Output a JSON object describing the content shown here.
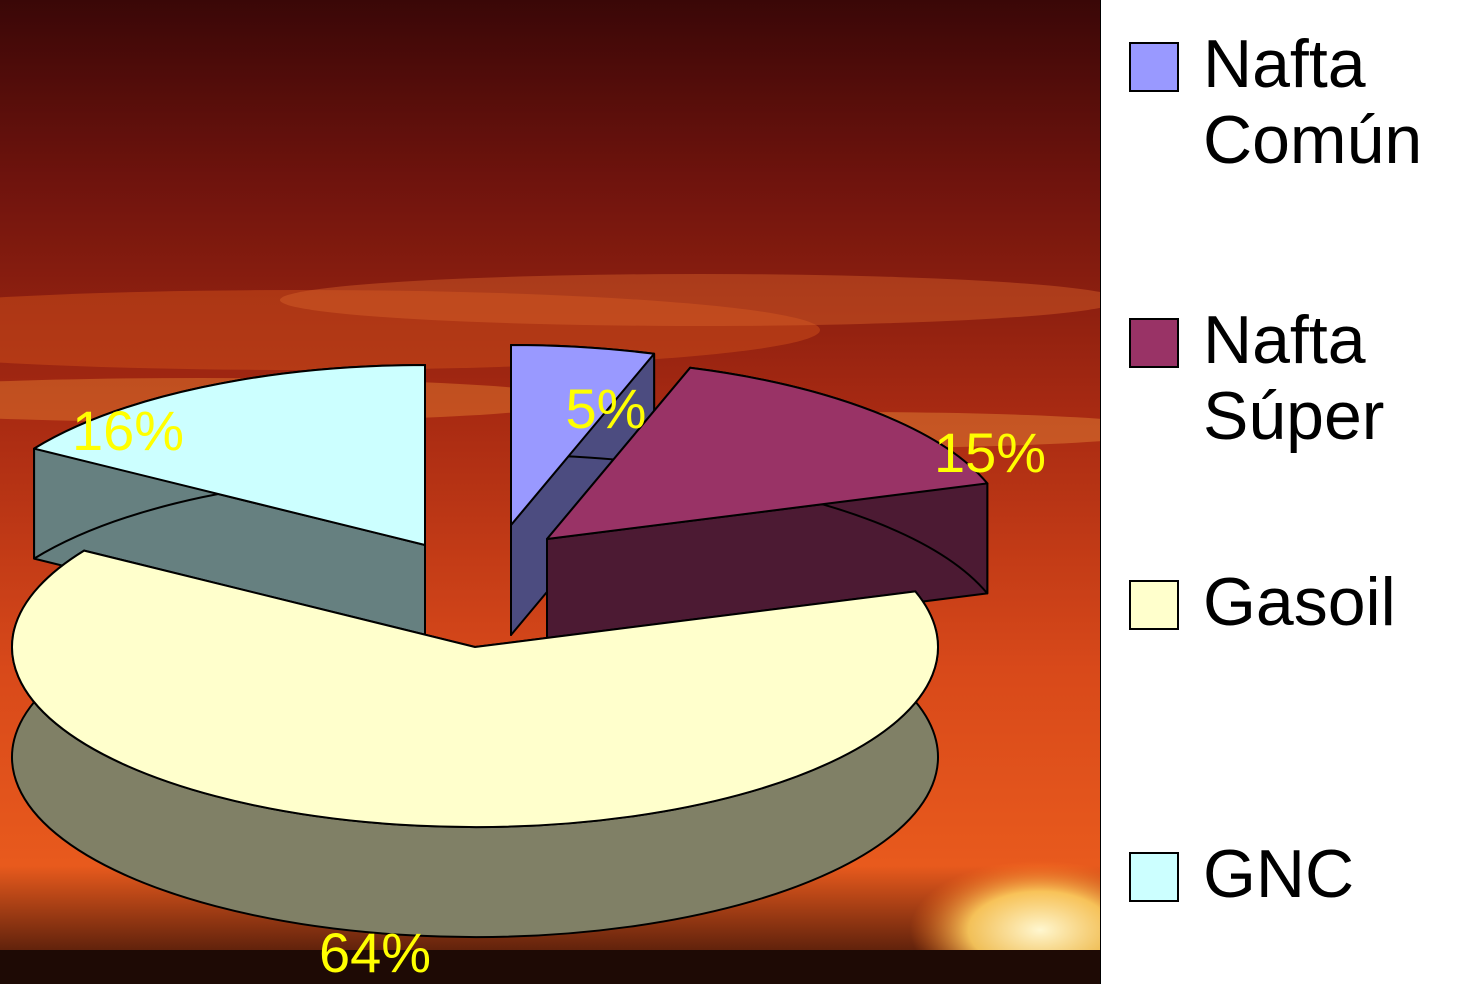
{
  "chart_data": {
    "type": "pie",
    "title": "",
    "style": "3d-exploded",
    "series": [
      {
        "name": "Nafta Común",
        "value": 5,
        "label": "5%",
        "color": "#9999ff",
        "side_color": "#4c4c80"
      },
      {
        "name": "Nafta Súper",
        "value": 15,
        "label": "15%",
        "color": "#993366",
        "side_color": "#4c1a33"
      },
      {
        "name": "Gasoil",
        "value": 64,
        "label": "64%",
        "color": "#ffffcc",
        "side_color": "#808066"
      },
      {
        "name": "GNC",
        "value": 16,
        "label": "16%",
        "color": "#ccffff",
        "side_color": "#668080"
      }
    ],
    "data_label_color": "#ffff00",
    "legend_position": "right"
  }
}
